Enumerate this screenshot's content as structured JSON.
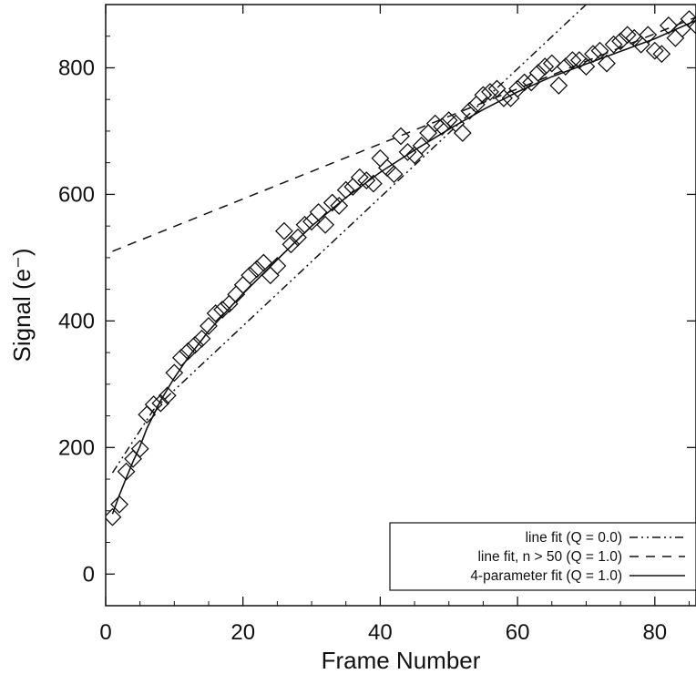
{
  "chart_data": {
    "type": "scatter",
    "title": "",
    "xlabel": "Frame Number",
    "ylabel": "Signal (e⁻)",
    "xlim": [
      0,
      86
    ],
    "ylim": [
      -50,
      900
    ],
    "xticks": [
      0,
      20,
      40,
      60,
      80
    ],
    "yticks": [
      0,
      200,
      400,
      600,
      800
    ],
    "grid": false,
    "legend": {
      "position": "bottom-right",
      "entries": [
        {
          "label": "line fit (Q = 0.0)",
          "style": "dash-dot-dot"
        },
        {
          "label": "line fit, n > 50 (Q = 1.0)",
          "style": "dashed"
        },
        {
          "label": "4-parameter fit (Q = 1.0)",
          "style": "solid"
        }
      ]
    },
    "series": [
      {
        "kind": "points",
        "marker": "diamond",
        "x": [
          1,
          2,
          3,
          4,
          5,
          6,
          7,
          8,
          9,
          10,
          11,
          12,
          13,
          14,
          15,
          16,
          17,
          18,
          19,
          20,
          21,
          22,
          23,
          24,
          25,
          26,
          27,
          28,
          29,
          30,
          31,
          32,
          33,
          34,
          35,
          36,
          37,
          38,
          39,
          40,
          41,
          42,
          43,
          44,
          45,
          46,
          47,
          48,
          49,
          50,
          51,
          52,
          53,
          54,
          55,
          56,
          57,
          58,
          59,
          60,
          61,
          62,
          63,
          64,
          65,
          66,
          67,
          68,
          69,
          70,
          71,
          72,
          73,
          74,
          75,
          76,
          77,
          78,
          79,
          80,
          81,
          82,
          83,
          84,
          85,
          86
        ],
        "y": [
          90,
          110,
          162,
          182,
          198,
          252,
          268,
          270,
          282,
          318,
          342,
          352,
          362,
          372,
          392,
          412,
          418,
          427,
          442,
          457,
          472,
          482,
          492,
          472,
          487,
          542,
          521,
          532,
          552,
          557,
          572,
          552,
          587,
          582,
          607,
          612,
          627,
          622,
          617,
          657,
          642,
          632,
          692,
          667,
          662,
          677,
          697,
          712,
          707,
          717,
          712,
          697,
          732,
          742,
          757,
          762,
          767,
          752,
          752,
          767,
          777,
          777,
          792,
          802,
          807,
          772,
          802,
          812,
          812,
          802,
          822,
          827,
          807,
          837,
          842,
          852,
          847,
          837,
          852,
          827,
          822,
          867,
          847,
          862,
          877,
          867
        ]
      },
      {
        "kind": "line",
        "style": "dash-dot-dot",
        "x": [
          1,
          7,
          70
        ],
        "y": [
          160,
          260,
          900
        ]
      },
      {
        "kind": "line",
        "style": "dashed",
        "x": [
          1,
          86
        ],
        "y": [
          510,
          880
        ]
      },
      {
        "kind": "line",
        "style": "solid",
        "x": [
          1,
          2,
          3,
          4,
          5,
          6,
          8,
          10,
          12,
          15,
          18,
          20,
          25,
          30,
          35,
          40,
          45,
          50,
          55,
          60,
          65,
          70,
          75,
          80,
          86
        ],
        "y": [
          95,
          125,
          152,
          178,
          202,
          230,
          274,
          310,
          342,
          384,
          420,
          443,
          497,
          550,
          595,
          635,
          670,
          703,
          734,
          762,
          786,
          806,
          826,
          846,
          875
        ]
      }
    ]
  }
}
